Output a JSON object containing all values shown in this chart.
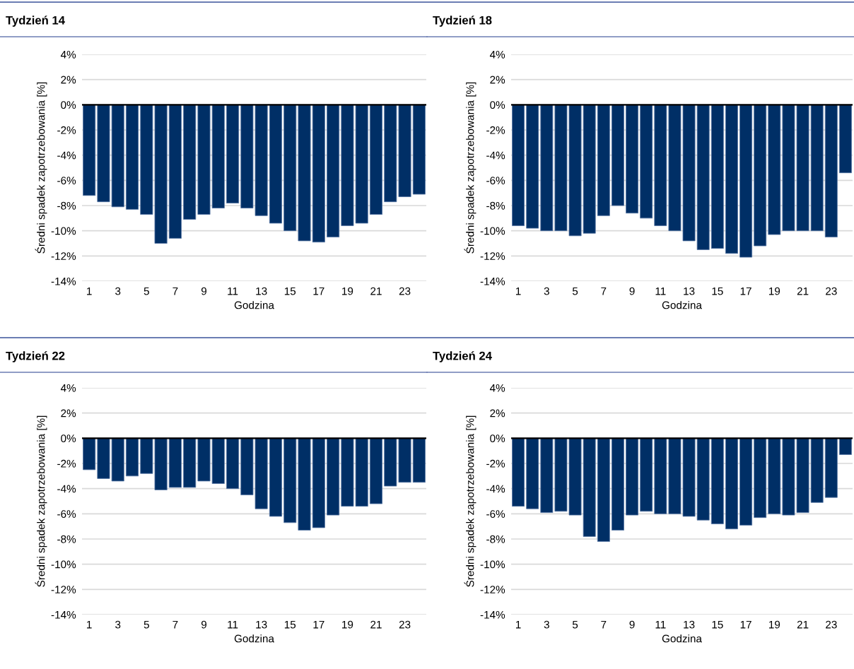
{
  "chart_data": [
    {
      "type": "bar",
      "title": "Tydzień 14",
      "xlabel": "Godzina",
      "ylabel": "Średni spadek zapotrzebowania [%]",
      "categories": [
        "1",
        null,
        "3",
        null,
        "5",
        null,
        "7",
        null,
        "9",
        null,
        "11",
        null,
        "13",
        null,
        "15",
        null,
        "17",
        null,
        "19",
        null,
        "21",
        null,
        "23",
        null
      ],
      "color": "#002f66",
      "values": [
        -7.2,
        -7.7,
        -8.1,
        -8.3,
        -8.7,
        -11.0,
        -10.6,
        -9.1,
        -8.7,
        -8.2,
        -7.8,
        -8.2,
        -8.8,
        -9.4,
        -10.0,
        -10.8,
        -10.9,
        -10.5,
        -9.6,
        -9.4,
        -8.7,
        -7.7,
        -7.3,
        -7.1
      ],
      "ylim": [
        -14,
        4
      ],
      "yticks": [
        {
          "value": 4,
          "label": "4%"
        },
        {
          "value": 2,
          "label": "2%"
        },
        {
          "value": 0,
          "label": "0%"
        },
        {
          "value": -2,
          "label": "-2%"
        },
        {
          "value": -4,
          "label": "-4%"
        },
        {
          "value": -6,
          "label": "-6%"
        },
        {
          "value": -8,
          "label": "-8%"
        },
        {
          "value": -10,
          "label": "-10%"
        },
        {
          "value": -12,
          "label": "-12%"
        },
        {
          "value": -14,
          "label": "-14%"
        }
      ],
      "grid": "y",
      "legend": false
    },
    {
      "type": "bar",
      "title": "Tydzień 18",
      "xlabel": "Godzina",
      "ylabel": "Średni spadek zapotrzebowania [%]",
      "categories": [
        "1",
        null,
        "3",
        null,
        "5",
        null,
        "7",
        null,
        "9",
        null,
        "11",
        null,
        "13",
        null,
        "15",
        null,
        "17",
        null,
        "19",
        null,
        "21",
        null,
        "23",
        null
      ],
      "color": "#002f66",
      "values": [
        -9.6,
        -9.8,
        -10.0,
        -10.0,
        -10.4,
        -10.2,
        -8.8,
        -8.0,
        -8.6,
        -9.0,
        -9.6,
        -10.0,
        -10.8,
        -11.5,
        -11.4,
        -11.8,
        -12.1,
        -11.2,
        -10.3,
        -10.0,
        -10.0,
        -10.0,
        -10.5,
        -5.4
      ],
      "ylim": [
        -14,
        4
      ],
      "yticks": [
        {
          "value": 4,
          "label": "4%"
        },
        {
          "value": 2,
          "label": "2%"
        },
        {
          "value": 0,
          "label": "0%"
        },
        {
          "value": -2,
          "label": "-2%"
        },
        {
          "value": -4,
          "label": "-4%"
        },
        {
          "value": -6,
          "label": "-6%"
        },
        {
          "value": -8,
          "label": "-8%"
        },
        {
          "value": -10,
          "label": "-10%"
        },
        {
          "value": -12,
          "label": "-12%"
        },
        {
          "value": -14,
          "label": "-14%"
        }
      ],
      "grid": "y",
      "legend": false
    },
    {
      "type": "bar",
      "title": "Tydzień 22",
      "xlabel": "Godzina",
      "ylabel": "Średni spadek zapotrzebowania [%]",
      "categories": [
        "1",
        null,
        "3",
        null,
        "5",
        null,
        "7",
        null,
        "9",
        null,
        "11",
        null,
        "13",
        null,
        "15",
        null,
        "17",
        null,
        "19",
        null,
        "21",
        null,
        "23",
        null
      ],
      "color": "#002f66",
      "values": [
        -2.5,
        -3.2,
        -3.4,
        -3.0,
        -2.8,
        -4.1,
        -3.9,
        -3.9,
        -3.4,
        -3.6,
        -4.0,
        -4.5,
        -5.6,
        -6.2,
        -6.7,
        -7.3,
        -7.1,
        -6.1,
        -5.4,
        -5.4,
        -5.2,
        -3.8,
        -3.5,
        -3.5
      ],
      "ylim": [
        -14,
        4
      ],
      "yticks": [
        {
          "value": 4,
          "label": "4%"
        },
        {
          "value": 2,
          "label": "2%"
        },
        {
          "value": 0,
          "label": "0%"
        },
        {
          "value": -2,
          "label": "-2%"
        },
        {
          "value": -4,
          "label": "-4%"
        },
        {
          "value": -6,
          "label": "-6%"
        },
        {
          "value": -8,
          "label": "-8%"
        },
        {
          "value": -10,
          "label": "-10%"
        },
        {
          "value": -12,
          "label": "-12%"
        },
        {
          "value": -14,
          "label": "-14%"
        }
      ],
      "grid": "y",
      "legend": false
    },
    {
      "type": "bar",
      "title": "Tydzień 24",
      "xlabel": "Godzina",
      "ylabel": "Średni spadek zapotrzebowania [%]",
      "categories": [
        "1",
        null,
        "3",
        null,
        "5",
        null,
        "7",
        null,
        "9",
        null,
        "11",
        null,
        "13",
        null,
        "15",
        null,
        "17",
        null,
        "19",
        null,
        "21",
        null,
        "23",
        null
      ],
      "color": "#002f66",
      "values": [
        -5.4,
        -5.6,
        -5.9,
        -5.8,
        -6.1,
        -7.8,
        -8.2,
        -7.3,
        -6.1,
        -5.8,
        -6.0,
        -6.0,
        -6.2,
        -6.5,
        -6.8,
        -7.2,
        -6.9,
        -6.3,
        -6.0,
        -6.1,
        -5.9,
        -5.1,
        -4.7,
        -1.3
      ],
      "ylim": [
        -14,
        4
      ],
      "yticks": [
        {
          "value": 4,
          "label": "4%"
        },
        {
          "value": 2,
          "label": "2%"
        },
        {
          "value": 0,
          "label": "0%"
        },
        {
          "value": -2,
          "label": "-2%"
        },
        {
          "value": -4,
          "label": "-4%"
        },
        {
          "value": -6,
          "label": "-6%"
        },
        {
          "value": -8,
          "label": "-8%"
        },
        {
          "value": -10,
          "label": "-10%"
        },
        {
          "value": -12,
          "label": "-12%"
        },
        {
          "value": -14,
          "label": "-14%"
        }
      ],
      "grid": "y",
      "legend": false
    }
  ]
}
